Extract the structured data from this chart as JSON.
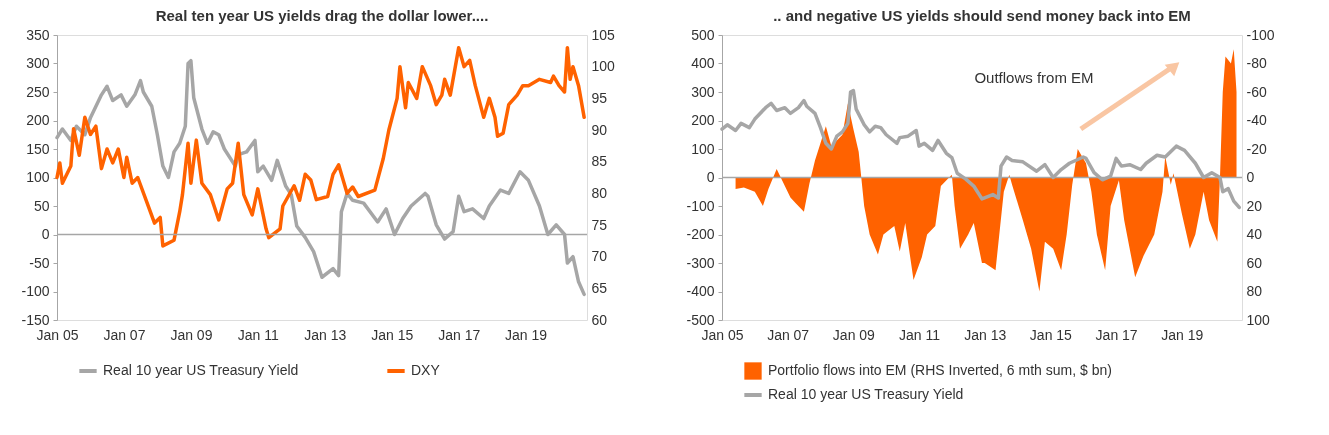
{
  "chart_data": [
    {
      "type": "line",
      "title": "Real ten year US yields drag the dollar lower....",
      "xlim": [
        "2005-01",
        "2020-11"
      ],
      "xticks": [
        {
          "value": "2005-01",
          "label": "Jan 05"
        },
        {
          "value": "2007-01",
          "label": "Jan 07"
        },
        {
          "value": "2009-01",
          "label": "Jan 09"
        },
        {
          "value": "2011-01",
          "label": "Jan 11"
        },
        {
          "value": "2013-01",
          "label": "Jan 13"
        },
        {
          "value": "2015-01",
          "label": "Jan 15"
        },
        {
          "value": "2017-01",
          "label": "Jan 17"
        },
        {
          "value": "2019-01",
          "label": "Jan 19"
        }
      ],
      "ylim": [
        -150,
        350
      ],
      "yticks": [
        -150,
        -100,
        -50,
        0,
        50,
        100,
        150,
        200,
        250,
        300,
        350
      ],
      "y2lim": [
        60,
        105
      ],
      "y2ticks": [
        60,
        65,
        70,
        75,
        80,
        85,
        90,
        95,
        100,
        105
      ],
      "legend": "bottom",
      "ref_lines": [
        {
          "axis": "y",
          "value": 0,
          "color": "#a6a6a6"
        }
      ],
      "series": [
        {
          "name": "Real 10 year US Treasury Yield",
          "color": "#a6a6a6",
          "x": [
            "2005-01",
            "2005-03",
            "2005-06",
            "2005-08",
            "2005-11",
            "2006-01",
            "2006-05",
            "2006-07",
            "2006-09",
            "2006-12",
            "2007-02",
            "2007-05",
            "2007-07",
            "2007-08",
            "2007-11",
            "2008-01",
            "2008-03",
            "2008-05",
            "2008-07",
            "2008-09",
            "2008-11",
            "2008-12",
            "2009-01",
            "2009-02",
            "2009-05",
            "2009-07",
            "2009-09",
            "2009-11",
            "2010-01",
            "2010-05",
            "2010-06",
            "2010-09",
            "2010-12",
            "2011-01",
            "2011-03",
            "2011-06",
            "2011-08",
            "2011-11",
            "2012-01",
            "2012-03",
            "2012-06",
            "2012-09",
            "2012-12",
            "2013-04",
            "2013-06",
            "2013-07",
            "2013-09",
            "2013-11",
            "2014-03",
            "2014-08",
            "2014-11",
            "2015-02",
            "2015-05",
            "2015-08",
            "2016-01",
            "2016-02",
            "2016-05",
            "2016-08",
            "2016-11",
            "2017-01",
            "2017-03",
            "2017-06",
            "2017-10",
            "2017-12",
            "2018-04",
            "2018-07",
            "2018-11",
            "2019-02",
            "2019-06",
            "2019-09",
            "2019-12",
            "2020-03",
            "2020-04",
            "2020-06",
            "2020-08",
            "2020-10"
          ],
          "values": [
            170,
            185,
            165,
            190,
            175,
            205,
            245,
            260,
            235,
            245,
            225,
            245,
            270,
            250,
            225,
            175,
            120,
            100,
            145,
            160,
            190,
            300,
            305,
            240,
            185,
            160,
            180,
            175,
            150,
            120,
            140,
            145,
            165,
            110,
            120,
            95,
            130,
            85,
            70,
            15,
            -5,
            -30,
            -75,
            -60,
            -72,
            40,
            72,
            60,
            55,
            22,
            45,
            0,
            28,
            50,
            72,
            67,
            17,
            -8,
            5,
            67,
            40,
            45,
            28,
            50,
            78,
            72,
            110,
            95,
            50,
            0,
            17,
            0,
            -50,
            -39,
            -83,
            -105
          ]
        },
        {
          "name": "DXY",
          "color": "#ff6200",
          "axis": "y2",
          "x": [
            "2005-01",
            "2005-02",
            "2005-03",
            "2005-06",
            "2005-07",
            "2005-09",
            "2005-11",
            "2006-01",
            "2006-03",
            "2006-05",
            "2006-07",
            "2006-09",
            "2006-11",
            "2007-01",
            "2007-02",
            "2007-04",
            "2007-06",
            "2007-09",
            "2007-12",
            "2008-02",
            "2008-03",
            "2008-07",
            "2008-09",
            "2008-10",
            "2008-12",
            "2009-01",
            "2009-03",
            "2009-05",
            "2009-08",
            "2009-11",
            "2010-02",
            "2010-04",
            "2010-06",
            "2010-08",
            "2010-11",
            "2011-01",
            "2011-04",
            "2011-05",
            "2011-09",
            "2011-10",
            "2012-02",
            "2012-04",
            "2012-06",
            "2012-08",
            "2012-10",
            "2013-02",
            "2013-04",
            "2013-06",
            "2013-09",
            "2013-11",
            "2014-01",
            "2014-07",
            "2014-10",
            "2014-12",
            "2015-03",
            "2015-04",
            "2015-06",
            "2015-07",
            "2015-10",
            "2015-12",
            "2016-03",
            "2016-05",
            "2016-07",
            "2016-08",
            "2016-10",
            "2017-01",
            "2017-03",
            "2017-05",
            "2017-07",
            "2017-10",
            "2017-12",
            "2018-02",
            "2018-03",
            "2018-05",
            "2018-07",
            "2018-10",
            "2018-12",
            "2019-02",
            "2019-06",
            "2019-10",
            "2019-11",
            "2020-01",
            "2020-03",
            "2020-04",
            "2020-05",
            "2020-06",
            "2020-08",
            "2020-10"
          ],
          "values": [
            82.5,
            84.8,
            81.6,
            84.3,
            90.2,
            86,
            92,
            89.3,
            90.6,
            83.9,
            87,
            84.8,
            87,
            82.5,
            85.7,
            81.6,
            82.5,
            78.9,
            75.3,
            76.2,
            71.7,
            72.6,
            77.1,
            79.8,
            87.9,
            81.6,
            88.4,
            81.6,
            79.8,
            75.8,
            80.7,
            81.6,
            87.9,
            79.8,
            76.6,
            80.7,
            74.4,
            73,
            74.4,
            78,
            81.2,
            78.9,
            83,
            82.1,
            79,
            79.5,
            83,
            84.5,
            80,
            81,
            79.5,
            80.5,
            85.5,
            90,
            95,
            100,
            93.5,
            97.5,
            95,
            100,
            97,
            94,
            95.5,
            98,
            95.5,
            103,
            100,
            101,
            97,
            92,
            95,
            92,
            89,
            89.5,
            94,
            95.5,
            97,
            97,
            98,
            97.5,
            98.5,
            97,
            96,
            103,
            98,
            100,
            97,
            92
          ]
        }
      ]
    },
    {
      "type": "area",
      "title": ".. and negative US yields should send money back into EM",
      "xlim": [
        "2005-01",
        "2020-11"
      ],
      "xticks": [
        {
          "value": "2005-01",
          "label": "Jan 05"
        },
        {
          "value": "2007-01",
          "label": "Jan 07"
        },
        {
          "value": "2009-01",
          "label": "Jan 09"
        },
        {
          "value": "2011-01",
          "label": "Jan 11"
        },
        {
          "value": "2013-01",
          "label": "Jan 13"
        },
        {
          "value": "2015-01",
          "label": "Jan 15"
        },
        {
          "value": "2017-01",
          "label": "Jan 17"
        },
        {
          "value": "2019-01",
          "label": "Jan 19"
        }
      ],
      "ylim": [
        -500,
        500
      ],
      "yticks": [
        -500,
        -400,
        -300,
        -200,
        -100,
        0,
        100,
        200,
        300,
        400,
        500
      ],
      "y2lim": [
        100,
        -100
      ],
      "y2ticks": [
        -100,
        -80,
        -60,
        -40,
        -20,
        0,
        20,
        40,
        60,
        80,
        100
      ],
      "legend": "bottom",
      "ref_lines": [
        {
          "axis": "y",
          "value": 0,
          "color": "#a6a6a6"
        }
      ],
      "annotations": [
        "Outflows from EM"
      ],
      "series": [
        {
          "name": "Portfolio flows into EM (RHS Inverted, 6 mth sum, $ bn)",
          "color": "#ff6200",
          "axis": "y2",
          "type": "area",
          "x": [
            "2005-06",
            "2005-09",
            "2006-01",
            "2006-04",
            "2006-06",
            "2006-09",
            "2006-12",
            "2007-02",
            "2007-04",
            "2007-07",
            "2007-09",
            "2007-11",
            "2008-01",
            "2008-03",
            "2008-05",
            "2008-07",
            "2008-09",
            "2008-11",
            "2009-01",
            "2009-03",
            "2009-05",
            "2009-07",
            "2009-10",
            "2009-12",
            "2010-04",
            "2010-06",
            "2010-08",
            "2010-11",
            "2011-02",
            "2011-04",
            "2011-07",
            "2011-09",
            "2012-01",
            "2012-02",
            "2012-04",
            "2012-07",
            "2012-09",
            "2012-12",
            "2013-01",
            "2013-05",
            "2013-08",
            "2013-10",
            "2013-11",
            "2014-03",
            "2014-06",
            "2014-09",
            "2014-11",
            "2015-02",
            "2015-05",
            "2015-07",
            "2015-09",
            "2015-11",
            "2016-02",
            "2016-04",
            "2016-06",
            "2016-09",
            "2016-11",
            "2017-02",
            "2017-04",
            "2017-08",
            "2017-11",
            "2018-03",
            "2018-06",
            "2018-07",
            "2018-09",
            "2018-10",
            "2019-01",
            "2019-04",
            "2019-06",
            "2019-09",
            "2019-11",
            "2020-02",
            "2020-03",
            "2020-04",
            "2020-05",
            "2020-07",
            "2020-08",
            "2020-09"
          ],
          "values": [
            8,
            7,
            10,
            20,
            8,
            -6,
            6,
            14,
            18,
            24,
            4,
            -12,
            -24,
            -36,
            -22,
            -26,
            -30,
            -52,
            -34,
            -18,
            20,
            40,
            54,
            40,
            34,
            52,
            32,
            72,
            56,
            40,
            34,
            6,
            -2,
            20,
            50,
            40,
            32,
            60,
            60,
            65,
            10,
            -2,
            5,
            30,
            50,
            80,
            45,
            50,
            65,
            40,
            5,
            -20,
            -10,
            10,
            40,
            65,
            20,
            2,
            30,
            70,
            55,
            40,
            10,
            -15,
            5,
            -3,
            25,
            50,
            40,
            10,
            30,
            45,
            0,
            -60,
            -85,
            -80,
            -90,
            -60
          ]
        },
        {
          "name": "Real 10 year US Treasury Yield",
          "color": "#a6a6a6",
          "type": "line",
          "x": [
            "2005-01",
            "2005-03",
            "2005-06",
            "2005-08",
            "2005-11",
            "2006-01",
            "2006-05",
            "2006-07",
            "2006-09",
            "2006-12",
            "2007-02",
            "2007-05",
            "2007-07",
            "2007-08",
            "2007-11",
            "2008-01",
            "2008-03",
            "2008-05",
            "2008-07",
            "2008-09",
            "2008-11",
            "2008-12",
            "2009-01",
            "2009-02",
            "2009-05",
            "2009-07",
            "2009-09",
            "2009-11",
            "2010-01",
            "2010-05",
            "2010-06",
            "2010-09",
            "2010-12",
            "2011-01",
            "2011-03",
            "2011-06",
            "2011-08",
            "2011-11",
            "2012-01",
            "2012-03",
            "2012-06",
            "2012-09",
            "2012-12",
            "2013-04",
            "2013-06",
            "2013-07",
            "2013-09",
            "2013-11",
            "2014-03",
            "2014-08",
            "2014-11",
            "2015-02",
            "2015-05",
            "2015-08",
            "2016-01",
            "2016-02",
            "2016-05",
            "2016-08",
            "2016-11",
            "2017-01",
            "2017-03",
            "2017-06",
            "2017-10",
            "2017-12",
            "2018-04",
            "2018-07",
            "2018-11",
            "2019-02",
            "2019-06",
            "2019-09",
            "2019-12",
            "2020-03",
            "2020-04",
            "2020-06",
            "2020-08",
            "2020-10"
          ],
          "values": [
            170,
            185,
            165,
            190,
            175,
            205,
            245,
            260,
            235,
            245,
            225,
            245,
            270,
            250,
            225,
            175,
            120,
            100,
            145,
            160,
            190,
            300,
            305,
            240,
            185,
            160,
            180,
            175,
            150,
            120,
            140,
            145,
            165,
            110,
            120,
            95,
            130,
            85,
            70,
            15,
            -5,
            -30,
            -75,
            -60,
            -72,
            40,
            72,
            60,
            55,
            22,
            45,
            0,
            28,
            50,
            72,
            67,
            17,
            -8,
            5,
            67,
            40,
            45,
            28,
            50,
            78,
            72,
            110,
            95,
            50,
            0,
            17,
            0,
            -50,
            -39,
            -83,
            -105
          ]
        }
      ]
    }
  ]
}
